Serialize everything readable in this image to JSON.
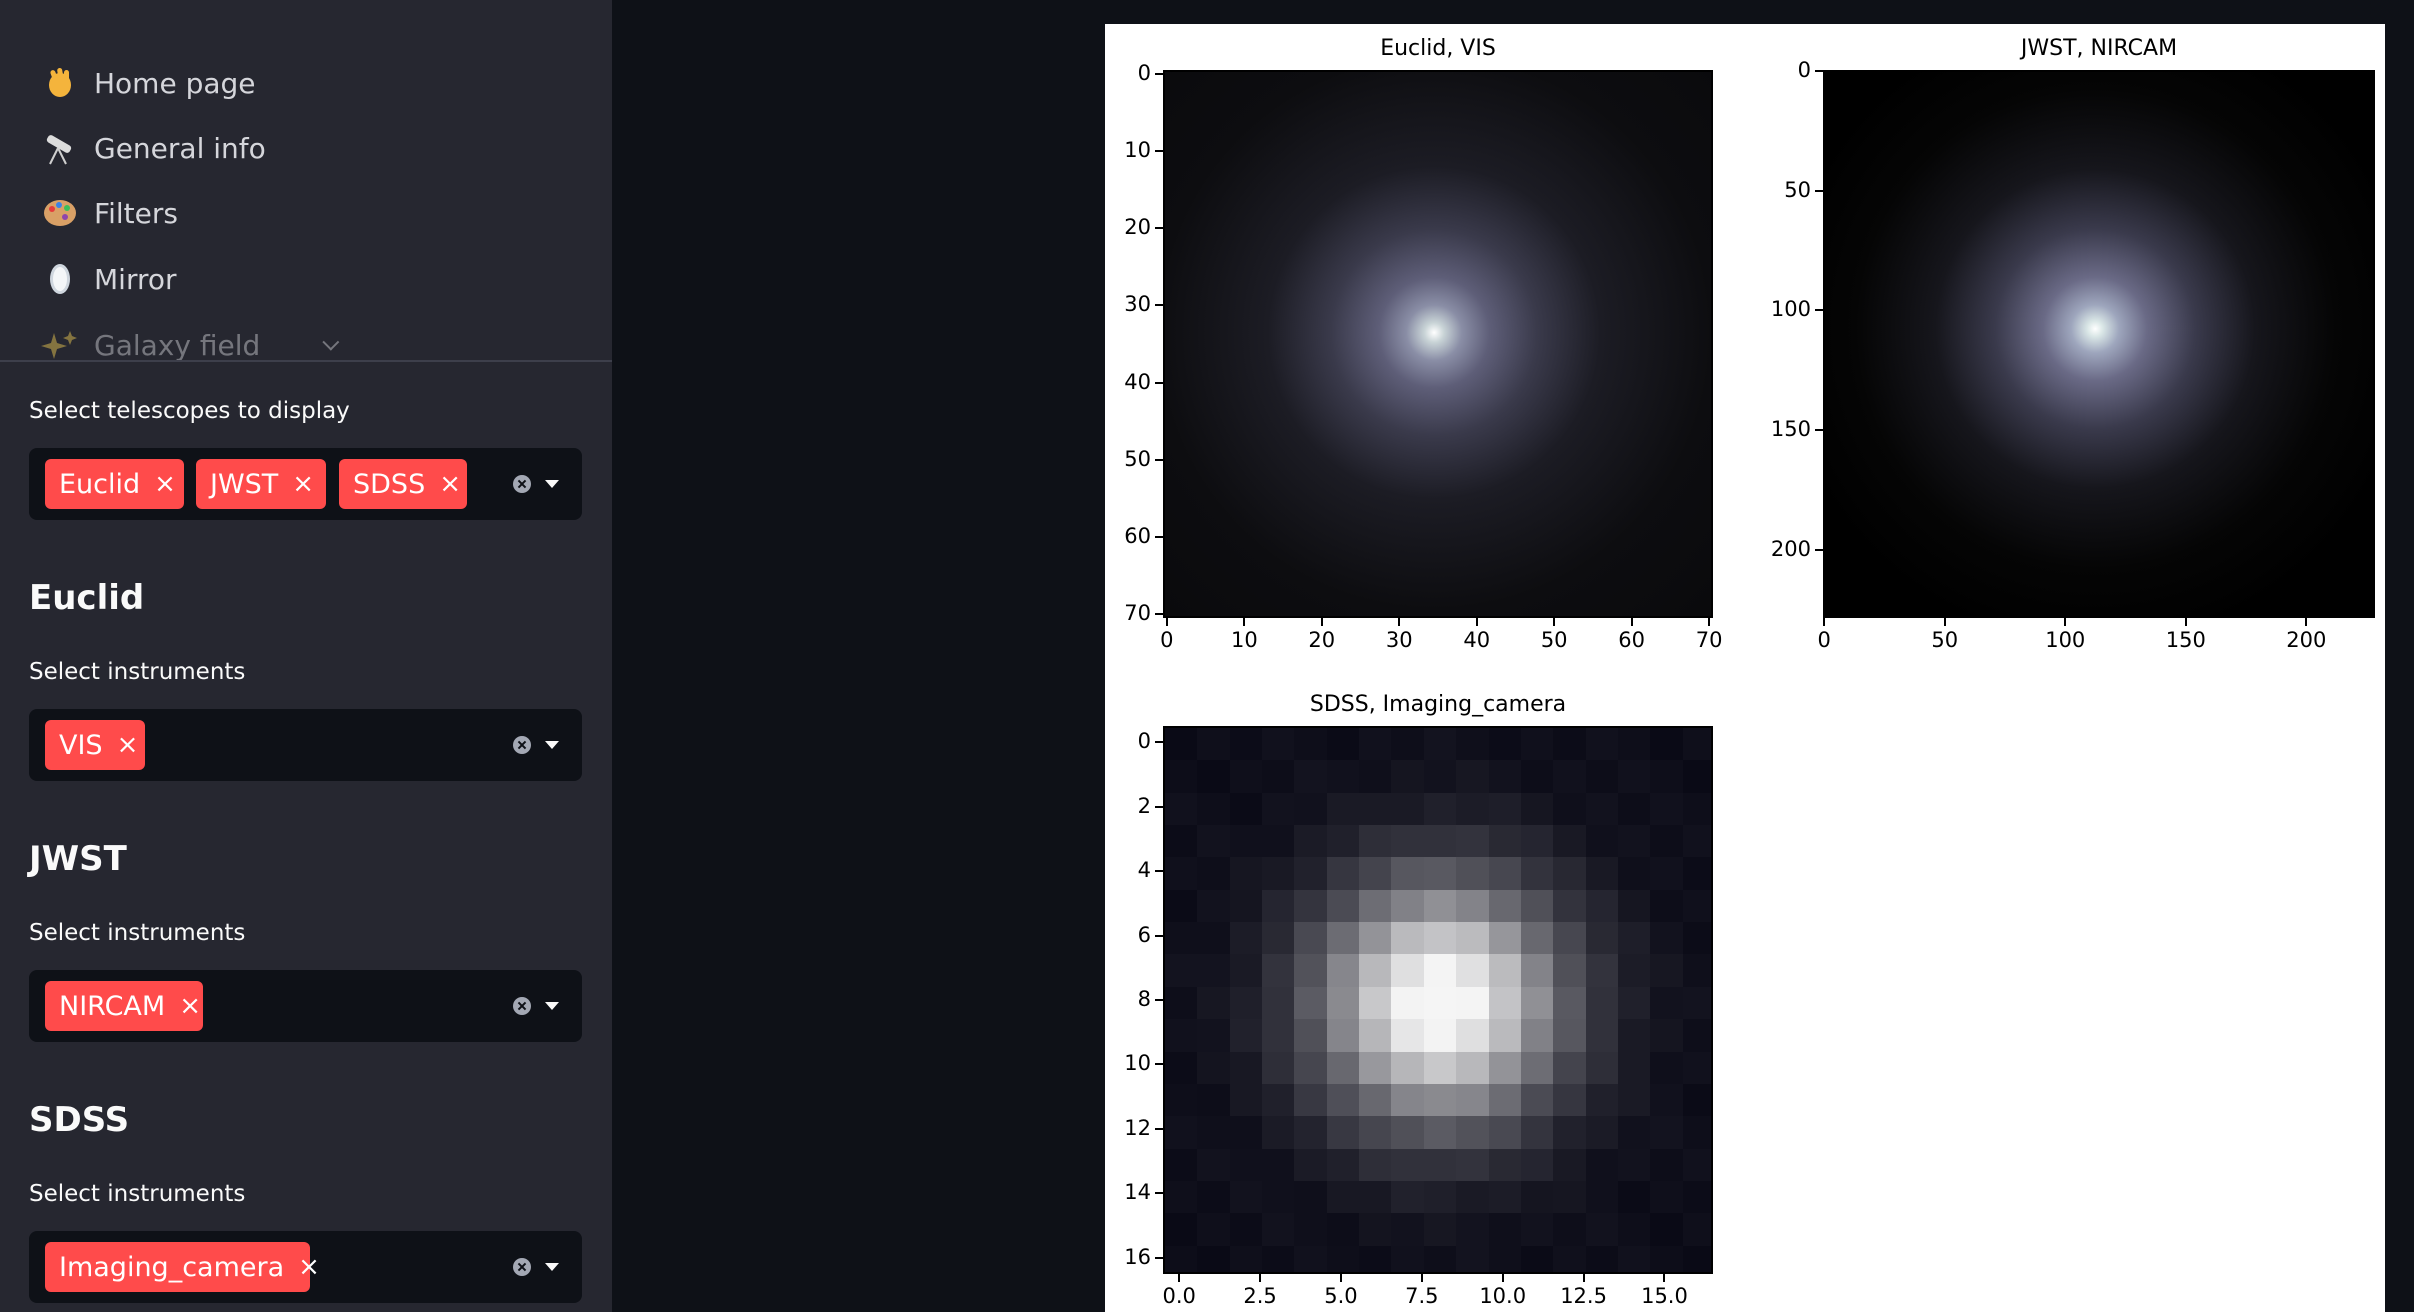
{
  "sidebar": {
    "nav": [
      {
        "label": "Home page",
        "icon": "waving-hand-icon"
      },
      {
        "label": "General info",
        "icon": "telescope-icon"
      },
      {
        "label": "Filters",
        "icon": "palette-icon"
      },
      {
        "label": "Mirror",
        "icon": "mirror-icon"
      },
      {
        "label": "Galaxy field",
        "icon": "sparkles-icon"
      }
    ],
    "telescopes_label": "Select telescopes to display",
    "telescopes": [
      "Euclid",
      "JWST",
      "SDSS"
    ],
    "sections": [
      {
        "title": "Euclid",
        "label": "Select instruments",
        "instruments": [
          "VIS"
        ]
      },
      {
        "title": "JWST",
        "label": "Select instruments",
        "instruments": [
          "NIRCAM"
        ]
      },
      {
        "title": "SDSS",
        "label": "Select instruments",
        "instruments": [
          "Imaging_camera"
        ]
      }
    ],
    "remove_glyph": "×"
  },
  "colors": {
    "accent": "#ff4b4b",
    "sidebar_bg": "#262730",
    "main_bg": "#0e1117"
  },
  "chart_data": [
    {
      "type": "heatmap",
      "title": "Euclid, VIS",
      "xlim": [
        0,
        71
      ],
      "ylim": [
        0,
        71
      ],
      "xticks": [
        "0",
        "10",
        "20",
        "30",
        "40",
        "50",
        "60",
        "70"
      ],
      "yticks": [
        "0",
        "10",
        "20",
        "30",
        "40",
        "50",
        "60",
        "70"
      ],
      "peak": [
        35,
        34
      ],
      "colormap": "bone"
    },
    {
      "type": "heatmap",
      "title": "JWST, NIRCAM",
      "xlim": [
        0,
        229
      ],
      "ylim": [
        0,
        229
      ],
      "xticks": [
        "0",
        "50",
        "100",
        "150",
        "200"
      ],
      "yticks": [
        "0",
        "50",
        "100",
        "150",
        "200"
      ],
      "peak": [
        113,
        108
      ],
      "colormap": "bone"
    },
    {
      "type": "heatmap",
      "title": "SDSS, Imaging_camera",
      "xlim": [
        0,
        17
      ],
      "ylim": [
        0,
        17
      ],
      "xticks": [
        "0.0",
        "2.5",
        "5.0",
        "7.5",
        "10.0",
        "12.5",
        "15.0"
      ],
      "yticks": [
        "0",
        "2",
        "4",
        "6",
        "8",
        "10",
        "12",
        "14",
        "16"
      ],
      "peak": [
        8,
        8
      ],
      "colormap": "bone"
    }
  ]
}
